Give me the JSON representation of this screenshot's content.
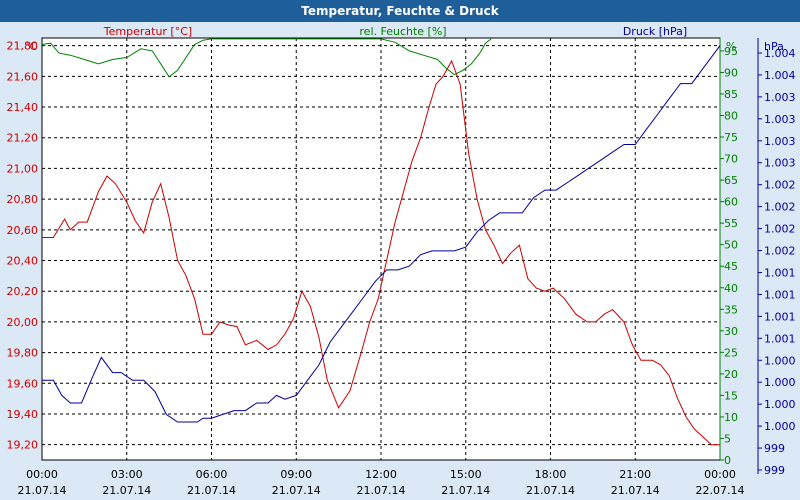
{
  "window": {
    "title": "Temperatur, Feuchte & Druck"
  },
  "chart_data": {
    "type": "line",
    "title": "Temperatur, Feuchte & Druck",
    "x": {
      "tick_labels": [
        {
          "time": "00:00",
          "date": "21.07.14"
        },
        {
          "time": "03:00",
          "date": "21.07.14"
        },
        {
          "time": "06:00",
          "date": "21.07.14"
        },
        {
          "time": "09:00",
          "date": "21.07.14"
        },
        {
          "time": "12:00",
          "date": "21.07.14"
        },
        {
          "time": "15:00",
          "date": "21.07.14"
        },
        {
          "time": "18:00",
          "date": "21.07.14"
        },
        {
          "time": "21:00",
          "date": "21.07.14"
        },
        {
          "time": "00:00",
          "date": "22.07.14"
        }
      ],
      "range_hours": [
        0,
        24
      ]
    },
    "axes": {
      "left": {
        "title": "Temperatur [°C]",
        "unit": "°C",
        "color": "#cc0000",
        "range": [
          19.1,
          21.85
        ],
        "ticks": [
          "19,20",
          "19,40",
          "19,60",
          "19,80",
          "20,00",
          "20,20",
          "20,40",
          "20,60",
          "20,80",
          "21,00",
          "21,20",
          "21,40",
          "21,60",
          "21,80"
        ]
      },
      "right1": {
        "title": "rel. Feuchte [%]",
        "unit": "%",
        "color": "#008000",
        "range": [
          0,
          98
        ],
        "ticks": [
          "0",
          "5",
          "10",
          "15",
          "20",
          "25",
          "30",
          "35",
          "40",
          "45",
          "50",
          "55",
          "60",
          "65",
          "70",
          "75",
          "80",
          "85",
          "90",
          "95"
        ]
      },
      "right2": {
        "title": "Druck [hPa]",
        "unit": "hPa",
        "color": "#000099",
        "range": [
          998.7,
          1004.25
        ],
        "tick_labels": [
          "999",
          "999",
          "1.000",
          "1.000",
          "1.000",
          "1.000",
          "1.001",
          "1.001",
          "1.001",
          "1.001",
          "1.002",
          "1.002",
          "1.002",
          "1.002",
          "1.003",
          "1.003",
          "1.003",
          "1.003",
          "1.004",
          "1.004"
        ]
      }
    },
    "grid": true,
    "series": [
      {
        "name": "Temperatur [°C]",
        "color": "#cc0000",
        "axis": "left",
        "x": [
          0,
          0.4,
          0.8,
          1.0,
          1.3,
          1.6,
          2.0,
          2.3,
          2.6,
          3.0,
          3.3,
          3.6,
          3.9,
          4.2,
          4.5,
          4.8,
          5.1,
          5.4,
          5.7,
          6.0,
          6.3,
          6.6,
          6.9,
          7.2,
          7.6,
          8.0,
          8.3,
          8.6,
          8.9,
          9.2,
          9.5,
          9.8,
          10.1,
          10.5,
          10.9,
          11.3,
          11.6,
          11.9,
          12.2,
          12.5,
          12.8,
          13.1,
          13.4,
          13.7,
          13.95,
          14.2,
          14.5,
          14.8,
          15.1,
          15.4,
          15.7,
          16.0,
          16.3,
          16.6,
          16.9,
          17.2,
          17.5,
          17.8,
          18.1,
          18.5,
          18.9,
          19.3,
          19.6,
          19.9,
          20.2,
          20.6,
          20.9,
          21.2,
          21.6,
          21.9,
          22.2,
          22.5,
          22.8,
          23.1,
          23.4,
          23.7,
          24.0
        ],
        "values": [
          20.55,
          20.55,
          20.67,
          20.6,
          20.65,
          20.65,
          20.85,
          20.95,
          20.9,
          20.78,
          20.66,
          20.58,
          20.78,
          20.9,
          20.68,
          20.4,
          20.3,
          20.15,
          19.92,
          19.92,
          20.0,
          19.98,
          19.97,
          19.85,
          19.88,
          19.82,
          19.85,
          19.92,
          20.02,
          20.2,
          20.1,
          19.9,
          19.62,
          19.44,
          19.55,
          19.8,
          20.0,
          20.15,
          20.4,
          20.65,
          20.85,
          21.05,
          21.2,
          21.4,
          21.55,
          21.6,
          21.7,
          21.55,
          21.1,
          20.8,
          20.6,
          20.5,
          20.38,
          20.45,
          20.5,
          20.28,
          20.22,
          20.2,
          20.22,
          20.15,
          20.05,
          20.0,
          20.0,
          20.05,
          20.08,
          20.0,
          19.85,
          19.75,
          19.75,
          19.72,
          19.65,
          19.5,
          19.38,
          19.3,
          19.25,
          19.2,
          19.2
        ]
      },
      {
        "name": "rel. Feuchte [%]",
        "color": "#008000",
        "axis": "right1",
        "x": [
          0,
          0.3,
          0.6,
          1.0,
          1.5,
          2.0,
          2.5,
          3.0,
          3.5,
          3.9,
          4.2,
          4.5,
          4.8,
          5.1,
          5.4,
          5.7,
          6.0,
          12.0,
          12.5,
          13.0,
          13.5,
          14.0,
          14.3,
          14.6,
          14.9,
          15.2,
          15.5,
          15.7,
          15.9
        ],
        "values": [
          96.5,
          96.8,
          94.5,
          94.0,
          93.0,
          92.0,
          93.0,
          93.5,
          95.5,
          95.0,
          92.0,
          89.0,
          90.5,
          93.5,
          96.5,
          97.5,
          97.8,
          97.8,
          97.0,
          95.0,
          94.0,
          93.0,
          91.0,
          89.5,
          90.5,
          92.0,
          94.5,
          96.8,
          97.8
        ]
      },
      {
        "name": "Druck [hPa]",
        "color": "#000099",
        "axis": "right2",
        "x": [
          0,
          0.4,
          0.7,
          1.0,
          1.4,
          1.8,
          2.1,
          2.5,
          2.8,
          3.2,
          3.6,
          4.0,
          4.4,
          4.8,
          5.2,
          5.5,
          5.7,
          6.0,
          6.4,
          6.8,
          7.2,
          7.6,
          8.0,
          8.3,
          8.6,
          9.0,
          9.4,
          9.8,
          10.2,
          10.6,
          11.0,
          11.4,
          11.8,
          12.2,
          12.6,
          13.0,
          13.4,
          13.8,
          14.2,
          14.6,
          15.0,
          15.4,
          15.8,
          16.2,
          16.6,
          17.0,
          17.4,
          17.8,
          18.2,
          18.6,
          19.0,
          19.4,
          19.8,
          20.2,
          20.6,
          21.0,
          21.4,
          21.8,
          22.2,
          22.6,
          23.0,
          23.4,
          23.8,
          24.0
        ],
        "values": [
          999.75,
          999.75,
          999.55,
          999.45,
          999.45,
          999.8,
          1000.05,
          999.85,
          999.85,
          999.75,
          999.75,
          999.6,
          999.3,
          999.2,
          999.2,
          999.2,
          999.25,
          999.25,
          999.3,
          999.35,
          999.35,
          999.45,
          999.45,
          999.55,
          999.5,
          999.55,
          999.75,
          999.95,
          1000.25,
          1000.45,
          1000.65,
          1000.85,
          1001.05,
          1001.2,
          1001.2,
          1001.25,
          1001.4,
          1001.45,
          1001.45,
          1001.45,
          1001.5,
          1001.7,
          1001.85,
          1001.95,
          1001.95,
          1001.95,
          1002.15,
          1002.25,
          1002.25,
          1002.35,
          1002.45,
          1002.55,
          1002.65,
          1002.75,
          1002.85,
          1002.85,
          1003.05,
          1003.25,
          1003.45,
          1003.65,
          1003.65,
          1003.85,
          1004.05,
          1004.15
        ]
      }
    ]
  }
}
